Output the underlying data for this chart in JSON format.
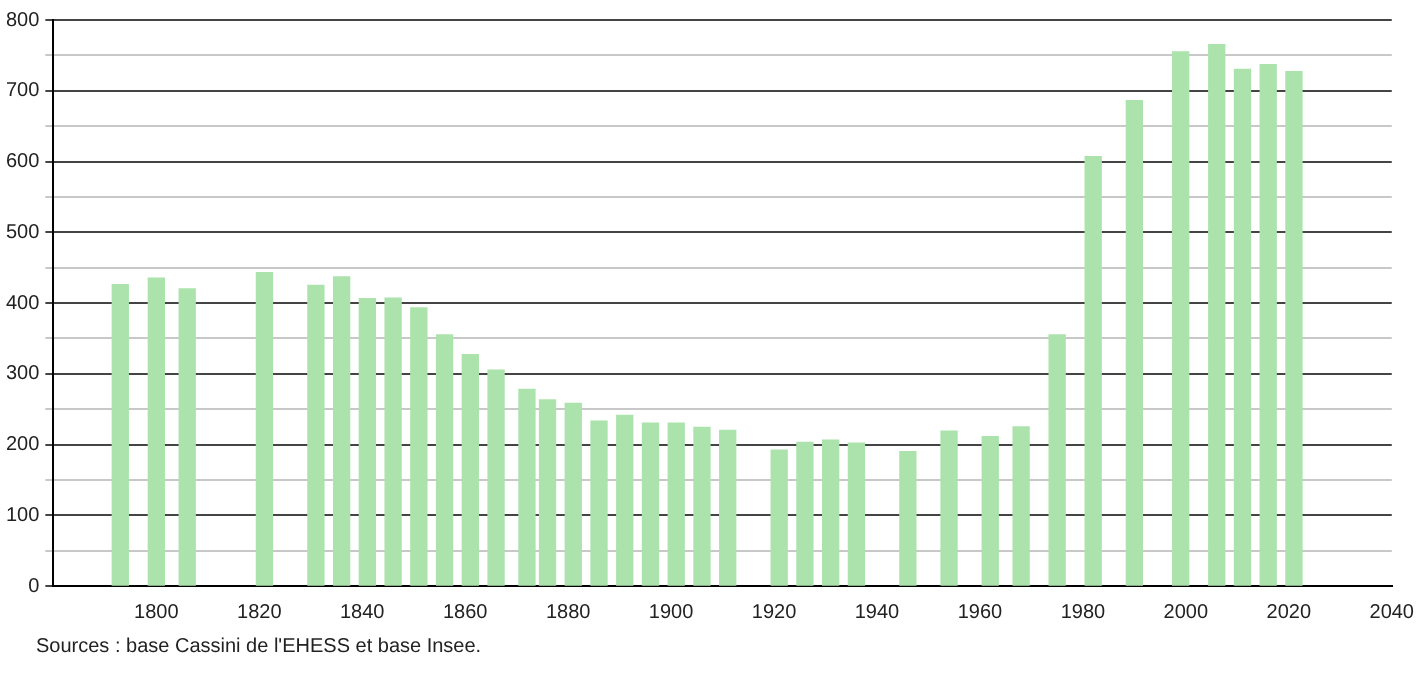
{
  "chart_data": {
    "type": "bar",
    "x": [
      1793,
      1800,
      1806,
      1821,
      1831,
      1836,
      1841,
      1846,
      1851,
      1856,
      1861,
      1866,
      1872,
      1876,
      1881,
      1886,
      1891,
      1896,
      1901,
      1906,
      1911,
      1921,
      1926,
      1931,
      1936,
      1946,
      1954,
      1962,
      1968,
      1975,
      1982,
      1990,
      1999,
      2006,
      2011,
      2016,
      2021
    ],
    "values": [
      426,
      435,
      420,
      443,
      425,
      437,
      406,
      407,
      393,
      355,
      327,
      305,
      278,
      263,
      258,
      233,
      241,
      230,
      230,
      224,
      220,
      192,
      203,
      206,
      202,
      190,
      219,
      211,
      225,
      355,
      607,
      686,
      755,
      765,
      730,
      737,
      727
    ],
    "color": "#ace3ac",
    "xlim": [
      1780,
      2040
    ],
    "xticks": [
      1800,
      1820,
      1840,
      1860,
      1880,
      1900,
      1920,
      1940,
      1960,
      1980,
      2000,
      2020,
      2040
    ],
    "ylim": [
      0,
      800
    ],
    "yticks": [
      0,
      {
        "value": 50,
        "label": null
      },
      100,
      {
        "value": 150,
        "label": null
      },
      200,
      {
        "value": 250,
        "label": null
      },
      300,
      {
        "value": 350,
        "label": null
      },
      400,
      {
        "value": 450,
        "label": null
      },
      500,
      {
        "value": 550,
        "label": null
      },
      600,
      {
        "value": 650,
        "label": null
      },
      700,
      {
        "value": 750,
        "label": null
      },
      800
    ],
    "grid": "y",
    "legend": false,
    "annotations": [
      "Sources : base Cassini de l'EHESS et base Insee."
    ]
  }
}
